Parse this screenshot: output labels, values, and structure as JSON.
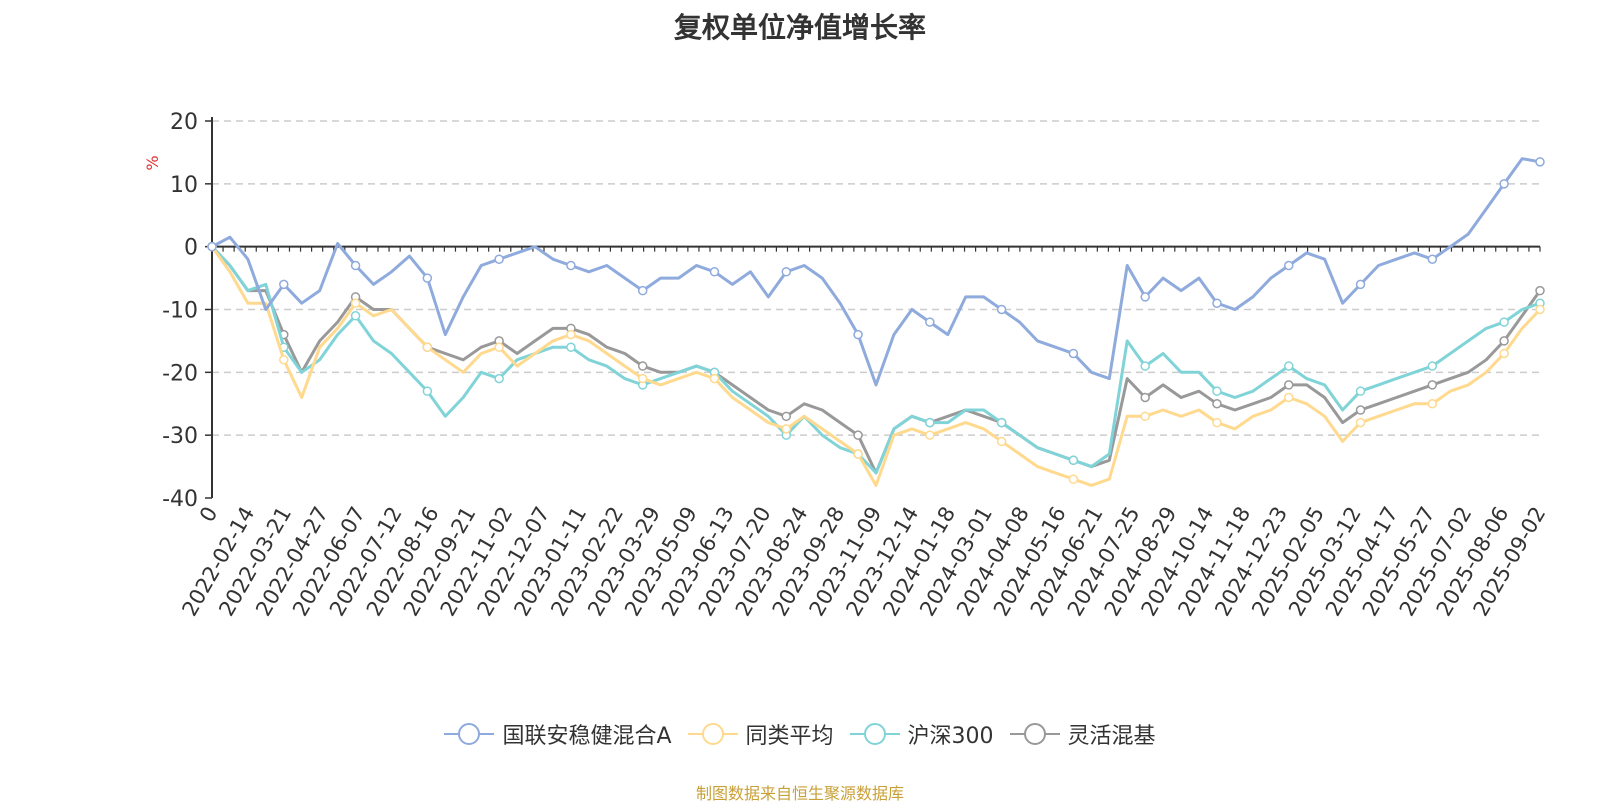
{
  "chart_data": {
    "type": "line",
    "title": "复权单位净值增长率",
    "ylabel": "%",
    "ylim": [
      -40,
      20
    ],
    "yticks": [
      20,
      10,
      0,
      -10,
      -20,
      -30,
      -40
    ],
    "grid": true,
    "legend_position": "bottom-center",
    "x_tick_labels": [
      "0",
      "2022-02-14",
      "2022-03-21",
      "2022-04-27",
      "2022-06-07",
      "2022-07-12",
      "2022-08-16",
      "2022-09-21",
      "2022-11-02",
      "2022-12-07",
      "2023-01-11",
      "2023-02-22",
      "2023-03-29",
      "2023-05-09",
      "2023-06-13",
      "2023-07-20",
      "2023-08-24",
      "2023-09-28",
      "2023-11-09",
      "2023-12-14",
      "2024-01-18",
      "2024-03-01",
      "2024-04-08",
      "2024-05-16",
      "2024-06-21",
      "2024-07-25",
      "2024-08-29",
      "2024-10-14",
      "2024-11-18",
      "2024-12-23",
      "2025-02-05",
      "2025-03-12",
      "2025-04-17",
      "2025-05-27",
      "2025-07-02",
      "2025-08-06",
      "2025-09-02"
    ],
    "series": [
      {
        "name": "国联安稳健混合A",
        "color": "#8faadc",
        "values": [
          0,
          1.5,
          -2,
          -10,
          -6,
          -9,
          -7,
          0.5,
          -3,
          -6,
          -4,
          -1.5,
          -5,
          -14,
          -8,
          -3,
          -2,
          -1,
          0,
          -2,
          -3,
          -4,
          -3,
          -5,
          -7,
          -5,
          -5,
          -3,
          -4,
          -6,
          -4,
          -8,
          -4,
          -3,
          -5,
          -9,
          -14,
          -22,
          -14,
          -10,
          -12,
          -14,
          -8,
          -8,
          -10,
          -12,
          -15,
          -16,
          -17,
          -20,
          -21,
          -3,
          -8,
          -5,
          -7,
          -5,
          -9,
          -10,
          -8,
          -5,
          -3,
          -1,
          -2,
          -9,
          -6,
          -3,
          -2,
          -1,
          -2,
          0,
          2,
          6,
          10,
          14,
          13.5
        ]
      },
      {
        "name": "同类平均",
        "color": "#ffd98e",
        "values": [
          0,
          -4,
          -9,
          -9,
          -18,
          -24,
          -16,
          -13,
          -9,
          -11,
          -10,
          -13,
          -16,
          -18,
          -20,
          -17,
          -16,
          -19,
          -17,
          -15,
          -14,
          -15,
          -17,
          -19,
          -21,
          -22,
          -21,
          -20,
          -21,
          -24,
          -26,
          -28,
          -29,
          -27,
          -29,
          -31,
          -33,
          -38,
          -30,
          -29,
          -30,
          -29,
          -28,
          -29,
          -31,
          -33,
          -35,
          -36,
          -37,
          -38,
          -37,
          -27,
          -27,
          -26,
          -27,
          -26,
          -28,
          -29,
          -27,
          -26,
          -24,
          -25,
          -27,
          -31,
          -28,
          -27,
          -26,
          -25,
          -25,
          -23,
          -22,
          -20,
          -17,
          -13,
          -10
        ]
      },
      {
        "name": "沪深300",
        "color": "#80d4d8",
        "values": [
          0,
          -3,
          -7,
          -6,
          -16,
          -20,
          -18,
          -14,
          -11,
          -15,
          -17,
          -20,
          -23,
          -27,
          -24,
          -20,
          -21,
          -18,
          -17,
          -16,
          -16,
          -18,
          -19,
          -21,
          -22,
          -21,
          -20,
          -19,
          -20,
          -23,
          -25,
          -27,
          -30,
          -27,
          -30,
          -32,
          -33,
          -36,
          -29,
          -27,
          -28,
          -28,
          -26,
          -26,
          -28,
          -30,
          -32,
          -33,
          -34,
          -35,
          -33,
          -15,
          -19,
          -17,
          -20,
          -20,
          -23,
          -24,
          -23,
          -21,
          -19,
          -21,
          -22,
          -26,
          -23,
          -22,
          -21,
          -20,
          -19,
          -17,
          -15,
          -13,
          -12,
          -10,
          -9
        ]
      },
      {
        "name": "灵活混基",
        "color": "#999999",
        "values": [
          0,
          -3,
          -7,
          -7,
          -14,
          -20,
          -15,
          -12,
          -8,
          -10,
          -10,
          -13,
          -16,
          -17,
          -18,
          -16,
          -15,
          -17,
          -15,
          -13,
          -13,
          -14,
          -16,
          -17,
          -19,
          -20,
          -20,
          -19,
          -20,
          -22,
          -24,
          -26,
          -27,
          -25,
          -26,
          -28,
          -30,
          -36,
          -29,
          -27,
          -28,
          -27,
          -26,
          -27,
          -28,
          -30,
          -32,
          -33,
          -34,
          -35,
          -34,
          -21,
          -24,
          -22,
          -24,
          -23,
          -25,
          -26,
          -25,
          -24,
          -22,
          -22,
          -24,
          -28,
          -26,
          -25,
          -24,
          -23,
          -22,
          -21,
          -20,
          -18,
          -15,
          -11,
          -7
        ]
      }
    ]
  },
  "source": "制图数据来自恒生聚源数据库"
}
